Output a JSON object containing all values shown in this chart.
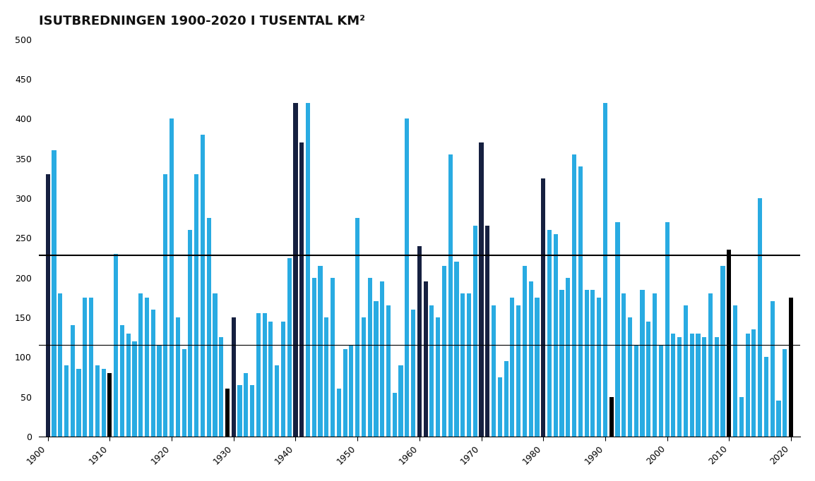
{
  "title": "ISUTBREDNINGEN 1900-2020 I TUSENTAL KM²",
  "title_fontsize": 13,
  "hline1": 228,
  "hline2": 115,
  "ylim": [
    0,
    500
  ],
  "yticks": [
    0,
    50,
    100,
    150,
    200,
    250,
    300,
    350,
    400,
    450,
    500
  ],
  "background_color": "#ffffff",
  "bar_color_light": "#29ABE2",
  "bar_color_dark": "#162040",
  "bar_color_black": "#000000",
  "years": [
    1900,
    1901,
    1902,
    1903,
    1904,
    1905,
    1906,
    1907,
    1908,
    1909,
    1910,
    1911,
    1912,
    1913,
    1914,
    1915,
    1916,
    1917,
    1918,
    1919,
    1920,
    1921,
    1922,
    1923,
    1924,
    1925,
    1926,
    1927,
    1928,
    1929,
    1930,
    1931,
    1932,
    1933,
    1934,
    1935,
    1936,
    1937,
    1938,
    1939,
    1940,
    1941,
    1942,
    1943,
    1944,
    1945,
    1946,
    1947,
    1948,
    1949,
    1950,
    1951,
    1952,
    1953,
    1954,
    1955,
    1956,
    1957,
    1958,
    1959,
    1960,
    1961,
    1962,
    1963,
    1964,
    1965,
    1966,
    1967,
    1968,
    1969,
    1970,
    1971,
    1972,
    1973,
    1974,
    1975,
    1976,
    1977,
    1978,
    1979,
    1980,
    1981,
    1982,
    1983,
    1984,
    1985,
    1986,
    1987,
    1988,
    1989,
    1990,
    1991,
    1992,
    1993,
    1994,
    1995,
    1996,
    1997,
    1998,
    1999,
    2000,
    2001,
    2002,
    2003,
    2004,
    2005,
    2006,
    2007,
    2008,
    2009,
    2010,
    2011,
    2012,
    2013,
    2014,
    2015,
    2016,
    2017,
    2018,
    2019,
    2020
  ],
  "values": [
    330,
    360,
    180,
    90,
    140,
    85,
    175,
    175,
    90,
    85,
    80,
    230,
    140,
    130,
    120,
    180,
    175,
    160,
    115,
    330,
    400,
    150,
    110,
    260,
    330,
    380,
    275,
    180,
    125,
    60,
    150,
    65,
    80,
    65,
    155,
    155,
    145,
    90,
    145,
    225,
    420,
    370,
    420,
    200,
    215,
    150,
    200,
    60,
    110,
    115,
    275,
    150,
    200,
    170,
    195,
    165,
    55,
    90,
    400,
    160,
    240,
    195,
    165,
    150,
    215,
    355,
    220,
    180,
    180,
    265,
    370,
    265,
    165,
    75,
    95,
    175,
    165,
    215,
    195,
    175,
    325,
    260,
    255,
    185,
    200,
    355,
    340,
    185,
    185,
    175,
    420,
    50,
    270,
    180,
    150,
    115,
    185,
    145,
    180,
    115,
    270,
    130,
    125,
    165,
    130,
    130,
    125,
    180,
    125,
    215,
    235,
    165,
    50,
    130,
    135,
    300,
    100,
    170,
    45,
    110,
    175
  ],
  "bar_types": [
    "D",
    "L",
    "L",
    "L",
    "L",
    "L",
    "L",
    "L",
    "L",
    "L",
    "B",
    "L",
    "L",
    "L",
    "L",
    "L",
    "L",
    "L",
    "L",
    "L",
    "L",
    "L",
    "L",
    "L",
    "L",
    "L",
    "L",
    "L",
    "L",
    "B",
    "D",
    "L",
    "L",
    "L",
    "L",
    "L",
    "L",
    "L",
    "L",
    "L",
    "D",
    "D",
    "L",
    "L",
    "L",
    "L",
    "L",
    "L",
    "L",
    "L",
    "L",
    "L",
    "L",
    "L",
    "L",
    "L",
    "L",
    "L",
    "L",
    "L",
    "D",
    "D",
    "L",
    "L",
    "L",
    "L",
    "L",
    "L",
    "L",
    "L",
    "D",
    "D",
    "L",
    "L",
    "L",
    "L",
    "L",
    "L",
    "L",
    "L",
    "D",
    "L",
    "L",
    "L",
    "L",
    "L",
    "L",
    "L",
    "L",
    "L",
    "L",
    "B",
    "L",
    "L",
    "L",
    "L",
    "L",
    "L",
    "L",
    "L",
    "L",
    "L",
    "L",
    "L",
    "L",
    "L",
    "L",
    "L",
    "L",
    "L",
    "B",
    "L",
    "L",
    "L",
    "L",
    "L",
    "L",
    "L",
    "L",
    "L",
    "B"
  ]
}
